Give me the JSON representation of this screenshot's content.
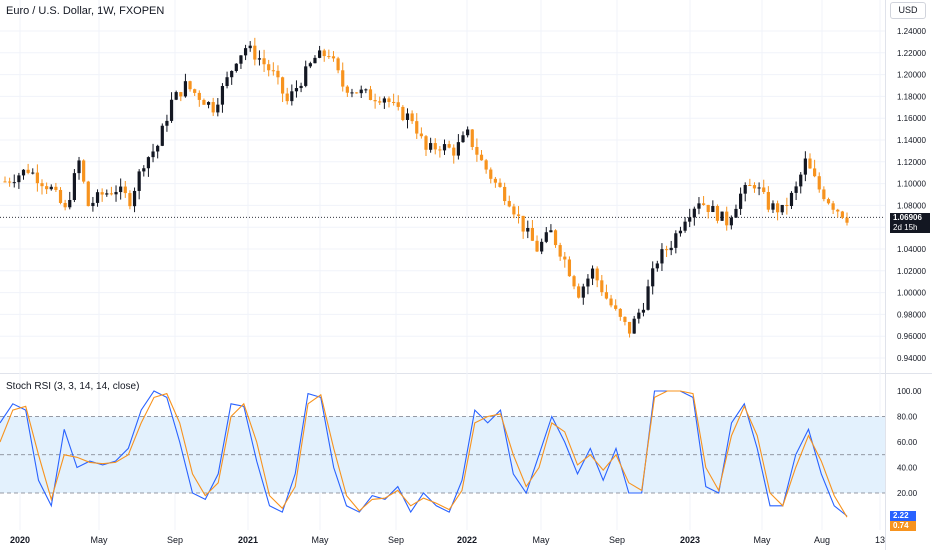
{
  "header": {
    "title": "Euro / U.S. Dollar, 1W, FXOPEN",
    "currency_button": "USD"
  },
  "price_badge": {
    "price": "1.06906",
    "countdown": "2d 15h"
  },
  "indicator": {
    "label": "Stoch RSI (3, 3, 14, 14, close)",
    "k_value": "2.22",
    "d_value": "0.74"
  },
  "colors": {
    "up": "#131722",
    "down": "#f7931e",
    "k_line": "#2962ff",
    "d_line": "#f7931e",
    "band_fill": "#e3f1fd",
    "grid": "#f0f3fa",
    "text": "#131722",
    "badge_bg": "#131722"
  },
  "chart_data": [
    {
      "type": "candlestick",
      "title": "Euro / U.S. Dollar, 1W, FXOPEN",
      "y_ticks": [
        "1.24000",
        "1.22000",
        "1.20000",
        "1.18000",
        "1.16000",
        "1.14000",
        "1.12000",
        "1.10000",
        "1.08000",
        "1.06000",
        "1.04000",
        "1.02000",
        "1.00000",
        "0.98000",
        "0.96000",
        "0.94000"
      ],
      "ylim": [
        0.93,
        1.245
      ],
      "x_ticks": [
        "2020",
        "May",
        "Sep",
        "2021",
        "May",
        "Sep",
        "2022",
        "May",
        "Sep",
        "2023",
        "May",
        "Aug",
        "13"
      ],
      "last_price": 1.06906,
      "close_path": [
        {
          "t": 0.0,
          "v": 1.102
        },
        {
          "t": 5,
          "v": 1.113
        },
        {
          "t": 10,
          "v": 1.095
        },
        {
          "t": 13,
          "v": 1.075
        },
        {
          "t": 16,
          "v": 1.12
        },
        {
          "t": 18,
          "v": 1.08
        },
        {
          "t": 21,
          "v": 1.09
        },
        {
          "t": 24,
          "v": 1.095
        },
        {
          "t": 27,
          "v": 1.085
        },
        {
          "t": 30,
          "v": 1.12
        },
        {
          "t": 33,
          "v": 1.135
        },
        {
          "t": 36,
          "v": 1.175
        },
        {
          "t": 39,
          "v": 1.19
        },
        {
          "t": 42,
          "v": 1.18
        },
        {
          "t": 45,
          "v": 1.17
        },
        {
          "t": 48,
          "v": 1.195
        },
        {
          "t": 50,
          "v": 1.215
        },
        {
          "t": 52,
          "v": 1.225
        },
        {
          "t": 55,
          "v": 1.215
        },
        {
          "t": 58,
          "v": 1.2
        },
        {
          "t": 61,
          "v": 1.175
        },
        {
          "t": 64,
          "v": 1.195
        },
        {
          "t": 67,
          "v": 1.215
        },
        {
          "t": 70,
          "v": 1.22
        },
        {
          "t": 73,
          "v": 1.19
        },
        {
          "t": 76,
          "v": 1.185
        },
        {
          "t": 79,
          "v": 1.18
        },
        {
          "t": 82,
          "v": 1.18
        },
        {
          "t": 85,
          "v": 1.165
        },
        {
          "t": 88,
          "v": 1.16
        },
        {
          "t": 91,
          "v": 1.13
        },
        {
          "t": 94,
          "v": 1.135
        },
        {
          "t": 97,
          "v": 1.13
        },
        {
          "t": 100,
          "v": 1.145
        },
        {
          "t": 103,
          "v": 1.12
        },
        {
          "t": 106,
          "v": 1.1
        },
        {
          "t": 109,
          "v": 1.085
        },
        {
          "t": 112,
          "v": 1.06
        },
        {
          "t": 115,
          "v": 1.04
        },
        {
          "t": 118,
          "v": 1.055
        },
        {
          "t": 121,
          "v": 1.03
        },
        {
          "t": 124,
          "v": 1.0
        },
        {
          "t": 127,
          "v": 1.02
        },
        {
          "t": 130,
          "v": 0.995
        },
        {
          "t": 133,
          "v": 0.975
        },
        {
          "t": 135,
          "v": 0.965
        },
        {
          "t": 138,
          "v": 0.99
        },
        {
          "t": 141,
          "v": 1.03
        },
        {
          "t": 144,
          "v": 1.045
        },
        {
          "t": 147,
          "v": 1.07
        },
        {
          "t": 150,
          "v": 1.085
        },
        {
          "t": 153,
          "v": 1.075
        },
        {
          "t": 156,
          "v": 1.065
        },
        {
          "t": 159,
          "v": 1.09
        },
        {
          "t": 162,
          "v": 1.1
        },
        {
          "t": 165,
          "v": 1.08
        },
        {
          "t": 168,
          "v": 1.075
        },
        {
          "t": 171,
          "v": 1.095
        },
        {
          "t": 173,
          "v": 1.12
        },
        {
          "t": 176,
          "v": 1.095
        },
        {
          "t": 179,
          "v": 1.08
        },
        {
          "t": 182,
          "v": 1.069
        }
      ]
    },
    {
      "type": "line",
      "title": "Stoch RSI (3, 3, 14, 14, close)",
      "y_ticks": [
        "100.00",
        "80.00",
        "60.00",
        "40.00",
        "20.00"
      ],
      "ylim": [
        0,
        110
      ],
      "band": [
        20,
        80
      ],
      "midline": 50,
      "series": [
        {
          "name": "K",
          "values": [
            75,
            90,
            85,
            30,
            10,
            70,
            40,
            45,
            42,
            45,
            55,
            85,
            100,
            95,
            60,
            20,
            15,
            35,
            90,
            88,
            45,
            10,
            5,
            35,
            98,
            95,
            40,
            10,
            5,
            18,
            15,
            25,
            5,
            20,
            10,
            5,
            30,
            85,
            75,
            85,
            35,
            20,
            50,
            80,
            60,
            35,
            55,
            30,
            55,
            20,
            20,
            100,
            100,
            100,
            95,
            25,
            20,
            75,
            90,
            55,
            10,
            10,
            50,
            70,
            35,
            10,
            2
          ]
        },
        {
          "name": "D",
          "values": [
            60,
            85,
            88,
            50,
            15,
            50,
            48,
            44,
            43,
            44,
            50,
            75,
            95,
            98,
            75,
            35,
            18,
            28,
            80,
            90,
            60,
            18,
            8,
            25,
            90,
            97,
            55,
            18,
            6,
            15,
            16,
            22,
            10,
            16,
            12,
            7,
            22,
            75,
            80,
            82,
            50,
            25,
            40,
            75,
            68,
            42,
            50,
            38,
            50,
            28,
            22,
            95,
            100,
            100,
            98,
            40,
            22,
            65,
            88,
            65,
            20,
            10,
            40,
            65,
            45,
            18,
            1
          ]
        }
      ],
      "last_values": {
        "K": 2.22,
        "D": 0.74
      }
    }
  ]
}
